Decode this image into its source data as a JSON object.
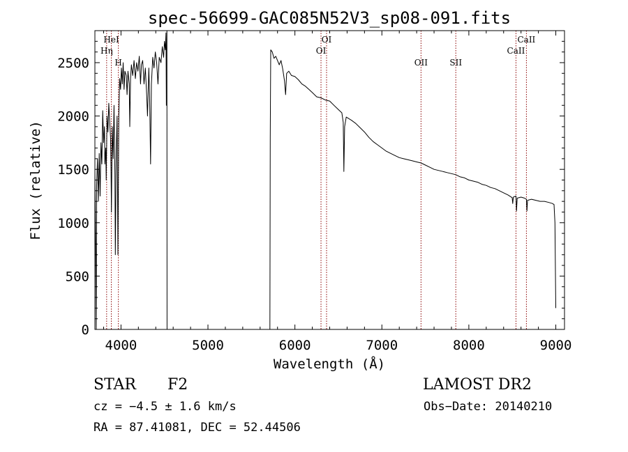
{
  "chart_data": {
    "type": "line",
    "title": "spec-56699-GAC085N52V3_sp08-091.fits",
    "xlabel": "Wavelength (Å)",
    "ylabel": "Flux (relative)",
    "xlim": [
      3700,
      9100
    ],
    "ylim": [
      0,
      2800
    ],
    "x_ticks": [
      4000,
      5000,
      6000,
      7000,
      8000,
      9000
    ],
    "y_ticks": [
      0,
      500,
      1000,
      1500,
      2000,
      2500
    ],
    "grid": false,
    "line_color": "#000000",
    "marker_color": "#8b0000",
    "series": [
      {
        "points": [
          [
            3700,
            1480
          ],
          [
            3710,
            700
          ],
          [
            3715,
            0
          ],
          [
            3720,
            1350
          ],
          [
            3730,
            1600
          ],
          [
            3740,
            1200
          ],
          [
            3750,
            1650
          ],
          [
            3760,
            1250
          ],
          [
            3770,
            1750
          ],
          [
            3780,
            1550
          ],
          [
            3790,
            2050
          ],
          [
            3800,
            1750
          ],
          [
            3810,
            1900
          ],
          [
            3815,
            1550
          ],
          [
            3825,
            1700
          ],
          [
            3830,
            1400
          ],
          [
            3840,
            2000
          ],
          [
            3850,
            1850
          ],
          [
            3860,
            2120
          ],
          [
            3870,
            1950
          ],
          [
            3880,
            1800
          ],
          [
            3885,
            1500
          ],
          [
            3890,
            1100
          ],
          [
            3900,
            1900
          ],
          [
            3910,
            1600
          ],
          [
            3920,
            2100
          ],
          [
            3930,
            1450
          ],
          [
            3935,
            700
          ],
          [
            3945,
            1600
          ],
          [
            3955,
            2000
          ],
          [
            3960,
            1450
          ],
          [
            3965,
            700
          ],
          [
            3975,
            2000
          ],
          [
            3985,
            2350
          ],
          [
            3995,
            2250
          ],
          [
            4005,
            2450
          ],
          [
            4015,
            2300
          ],
          [
            4025,
            2500
          ],
          [
            4035,
            2250
          ],
          [
            4045,
            2420
          ],
          [
            4060,
            2380
          ],
          [
            4070,
            2200
          ],
          [
            4080,
            2420
          ],
          [
            4095,
            2300
          ],
          [
            4101,
            1900
          ],
          [
            4110,
            2350
          ],
          [
            4120,
            2480
          ],
          [
            4135,
            2380
          ],
          [
            4150,
            2520
          ],
          [
            4165,
            2350
          ],
          [
            4180,
            2500
          ],
          [
            4195,
            2420
          ],
          [
            4210,
            2560
          ],
          [
            4225,
            2300
          ],
          [
            4235,
            2480
          ],
          [
            4250,
            2520
          ],
          [
            4265,
            2300
          ],
          [
            4280,
            2450
          ],
          [
            4295,
            2200
          ],
          [
            4305,
            2000
          ],
          [
            4320,
            2450
          ],
          [
            4330,
            2150
          ],
          [
            4340,
            1550
          ],
          [
            4350,
            2300
          ],
          [
            4365,
            2550
          ],
          [
            4380,
            2450
          ],
          [
            4395,
            2600
          ],
          [
            4410,
            2500
          ],
          [
            4425,
            2300
          ],
          [
            4440,
            2550
          ],
          [
            4460,
            2500
          ],
          [
            4475,
            2650
          ],
          [
            4490,
            2550
          ],
          [
            4500,
            2700
          ],
          [
            4510,
            2620
          ],
          [
            4518,
            2780
          ],
          [
            4522,
            2100
          ],
          [
            4528,
            2800
          ],
          [
            4530,
            0
          ],
          [
            5712,
            0
          ],
          [
            5716,
            1800
          ],
          [
            5722,
            2620
          ],
          [
            5740,
            2600
          ],
          [
            5760,
            2540
          ],
          [
            5780,
            2560
          ],
          [
            5800,
            2520
          ],
          [
            5820,
            2480
          ],
          [
            5840,
            2520
          ],
          [
            5860,
            2440
          ],
          [
            5880,
            2330
          ],
          [
            5893,
            2200
          ],
          [
            5905,
            2400
          ],
          [
            5930,
            2420
          ],
          [
            5960,
            2380
          ],
          [
            6000,
            2370
          ],
          [
            6040,
            2340
          ],
          [
            6080,
            2300
          ],
          [
            6120,
            2280
          ],
          [
            6160,
            2250
          ],
          [
            6200,
            2220
          ],
          [
            6250,
            2180
          ],
          [
            6300,
            2170
          ],
          [
            6350,
            2150
          ],
          [
            6400,
            2140
          ],
          [
            6450,
            2100
          ],
          [
            6500,
            2060
          ],
          [
            6540,
            2030
          ],
          [
            6556,
            1940
          ],
          [
            6563,
            1480
          ],
          [
            6572,
            1900
          ],
          [
            6590,
            1990
          ],
          [
            6650,
            1960
          ],
          [
            6700,
            1930
          ],
          [
            6750,
            1890
          ],
          [
            6800,
            1850
          ],
          [
            6850,
            1800
          ],
          [
            6900,
            1760
          ],
          [
            6950,
            1730
          ],
          [
            7000,
            1700
          ],
          [
            7050,
            1670
          ],
          [
            7100,
            1650
          ],
          [
            7150,
            1630
          ],
          [
            7200,
            1610
          ],
          [
            7250,
            1600
          ],
          [
            7300,
            1590
          ],
          [
            7350,
            1580
          ],
          [
            7400,
            1570
          ],
          [
            7450,
            1560
          ],
          [
            7500,
            1540
          ],
          [
            7550,
            1520
          ],
          [
            7600,
            1500
          ],
          [
            7650,
            1490
          ],
          [
            7700,
            1480
          ],
          [
            7750,
            1470
          ],
          [
            7800,
            1460
          ],
          [
            7850,
            1450
          ],
          [
            7900,
            1430
          ],
          [
            7950,
            1420
          ],
          [
            8000,
            1400
          ],
          [
            8050,
            1390
          ],
          [
            8100,
            1380
          ],
          [
            8150,
            1360
          ],
          [
            8200,
            1350
          ],
          [
            8250,
            1330
          ],
          [
            8300,
            1320
          ],
          [
            8350,
            1300
          ],
          [
            8400,
            1280
          ],
          [
            8450,
            1260
          ],
          [
            8498,
            1235
          ],
          [
            8505,
            1180
          ],
          [
            8512,
            1240
          ],
          [
            8542,
            1250
          ],
          [
            8548,
            1110
          ],
          [
            8556,
            1230
          ],
          [
            8600,
            1240
          ],
          [
            8640,
            1230
          ],
          [
            8662,
            1220
          ],
          [
            8668,
            1110
          ],
          [
            8675,
            1210
          ],
          [
            8720,
            1220
          ],
          [
            8770,
            1210
          ],
          [
            8820,
            1200
          ],
          [
            8870,
            1200
          ],
          [
            8920,
            1190
          ],
          [
            8960,
            1180
          ],
          [
            8980,
            1170
          ],
          [
            8990,
            1000
          ],
          [
            9000,
            200
          ]
        ]
      }
    ],
    "markers": [
      {
        "label": "HeI",
        "x": 3889,
        "row": 0
      },
      {
        "label": "Hη",
        "x": 3835,
        "row": 1
      },
      {
        "label": "H",
        "x": 3970,
        "row": 2
      },
      {
        "label": "OI",
        "x": 6364,
        "row": 0
      },
      {
        "label": "OI",
        "x": 6300,
        "row": 1
      },
      {
        "label": "OII",
        "x": 7450,
        "row": 2
      },
      {
        "label": "SII",
        "x": 7850,
        "row": 2
      },
      {
        "label": "CaII",
        "x": 8662,
        "row": 0
      },
      {
        "label": "CaII",
        "x": 8542,
        "row": 1
      }
    ]
  },
  "info": {
    "object_class": "STAR",
    "subclass": "F2",
    "survey": "LAMOST DR2",
    "cz": "cz = −4.5 ± 1.6 km/s",
    "obs_date": "Obs−Date: 20140210",
    "coords": "RA =  87.41081, DEC =  52.44506"
  }
}
